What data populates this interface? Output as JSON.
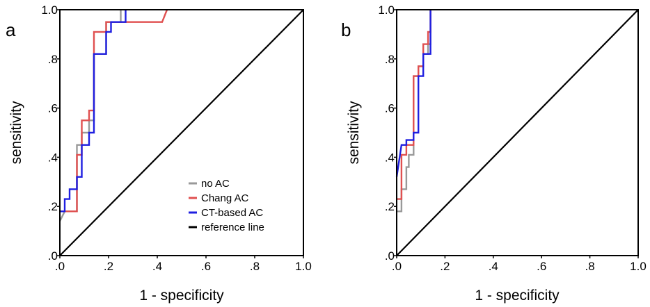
{
  "chart_data": [
    {
      "type": "line",
      "panel_label": "a",
      "xlabel": "1 - specificity",
      "ylabel": "sensitivity",
      "xlim": [
        0,
        1
      ],
      "ylim": [
        0,
        1
      ],
      "x_ticks": [
        ".0",
        ".2",
        ".4",
        ".6",
        ".8",
        "1.0"
      ],
      "y_ticks": [
        ".0",
        ".2",
        ".4",
        ".6",
        ".8",
        "1.0"
      ],
      "legend": {
        "placement": "bottom-right"
      },
      "series": [
        {
          "name": "no AC",
          "color": "#999999",
          "points": [
            [
              0,
              0.14
            ],
            [
              0.02,
              0.18
            ],
            [
              0.07,
              0.18
            ],
            [
              0.07,
              0.45
            ],
            [
              0.09,
              0.45
            ],
            [
              0.09,
              0.5
            ],
            [
              0.12,
              0.5
            ],
            [
              0.12,
              0.55
            ],
            [
              0.14,
              0.55
            ],
            [
              0.14,
              0.82
            ],
            [
              0.19,
              0.82
            ],
            [
              0.19,
              0.95
            ],
            [
              0.25,
              0.95
            ],
            [
              0.25,
              1.0
            ]
          ]
        },
        {
          "name": "Chang AC",
          "color": "#e05050",
          "points": [
            [
              0,
              0.18
            ],
            [
              0.07,
              0.18
            ],
            [
              0.07,
              0.41
            ],
            [
              0.09,
              0.41
            ],
            [
              0.09,
              0.55
            ],
            [
              0.12,
              0.55
            ],
            [
              0.12,
              0.59
            ],
            [
              0.14,
              0.59
            ],
            [
              0.14,
              0.91
            ],
            [
              0.19,
              0.91
            ],
            [
              0.19,
              0.95
            ],
            [
              0.42,
              0.95
            ],
            [
              0.44,
              1.0
            ]
          ]
        },
        {
          "name": "CT-based AC",
          "color": "#1f1fe0",
          "points": [
            [
              0,
              0.18
            ],
            [
              0.02,
              0.18
            ],
            [
              0.02,
              0.23
            ],
            [
              0.04,
              0.23
            ],
            [
              0.04,
              0.27
            ],
            [
              0.07,
              0.27
            ],
            [
              0.07,
              0.32
            ],
            [
              0.09,
              0.32
            ],
            [
              0.09,
              0.45
            ],
            [
              0.12,
              0.45
            ],
            [
              0.12,
              0.5
            ],
            [
              0.14,
              0.5
            ],
            [
              0.14,
              0.82
            ],
            [
              0.19,
              0.82
            ],
            [
              0.19,
              0.91
            ],
            [
              0.21,
              0.91
            ],
            [
              0.21,
              0.95
            ],
            [
              0.27,
              0.95
            ],
            [
              0.27,
              1.0
            ]
          ]
        },
        {
          "name": "reference line",
          "color": "#000000",
          "points": [
            [
              0,
              0
            ],
            [
              1,
              1
            ]
          ]
        }
      ]
    },
    {
      "type": "line",
      "panel_label": "b",
      "xlabel": "1 - specificity",
      "ylabel": "sensitivity",
      "xlim": [
        0,
        1
      ],
      "ylim": [
        0,
        1
      ],
      "x_ticks": [
        ".0",
        ".2",
        ".4",
        ".6",
        ".8",
        "1.0"
      ],
      "y_ticks": [
        ".0",
        ".2",
        ".4",
        ".6",
        ".8",
        "1.0"
      ],
      "series": [
        {
          "name": "no AC",
          "color": "#999999",
          "points": [
            [
              0,
              0.18
            ],
            [
              0.02,
              0.18
            ],
            [
              0.02,
              0.27
            ],
            [
              0.04,
              0.27
            ],
            [
              0.04,
              0.36
            ],
            [
              0.05,
              0.36
            ],
            [
              0.05,
              0.41
            ],
            [
              0.07,
              0.41
            ],
            [
              0.07,
              0.73
            ],
            [
              0.09,
              0.73
            ],
            [
              0.09,
              0.77
            ],
            [
              0.11,
              0.77
            ],
            [
              0.11,
              0.82
            ],
            [
              0.13,
              0.82
            ],
            [
              0.13,
              0.86
            ],
            [
              0.14,
              0.86
            ],
            [
              0.14,
              1.0
            ]
          ]
        },
        {
          "name": "Chang AC",
          "color": "#e05050",
          "points": [
            [
              0,
              0.23
            ],
            [
              0.02,
              0.23
            ],
            [
              0.02,
              0.41
            ],
            [
              0.04,
              0.41
            ],
            [
              0.04,
              0.45
            ],
            [
              0.07,
              0.45
            ],
            [
              0.07,
              0.73
            ],
            [
              0.09,
              0.73
            ],
            [
              0.09,
              0.77
            ],
            [
              0.11,
              0.77
            ],
            [
              0.11,
              0.86
            ],
            [
              0.13,
              0.86
            ],
            [
              0.13,
              0.91
            ],
            [
              0.14,
              0.91
            ],
            [
              0.14,
              1.0
            ]
          ]
        },
        {
          "name": "CT-based AC",
          "color": "#1f1fe0",
          "points": [
            [
              0,
              0.32
            ],
            [
              0.02,
              0.45
            ],
            [
              0.04,
              0.45
            ],
            [
              0.04,
              0.47
            ],
            [
              0.07,
              0.47
            ],
            [
              0.07,
              0.5
            ],
            [
              0.09,
              0.5
            ],
            [
              0.09,
              0.73
            ],
            [
              0.11,
              0.73
            ],
            [
              0.11,
              0.82
            ],
            [
              0.13,
              0.82
            ],
            [
              0.13,
              0.82
            ],
            [
              0.14,
              0.82
            ],
            [
              0.14,
              1.0
            ]
          ]
        },
        {
          "name": "reference line",
          "color": "#000000",
          "points": [
            [
              0,
              0
            ],
            [
              1,
              1
            ]
          ]
        }
      ]
    }
  ]
}
